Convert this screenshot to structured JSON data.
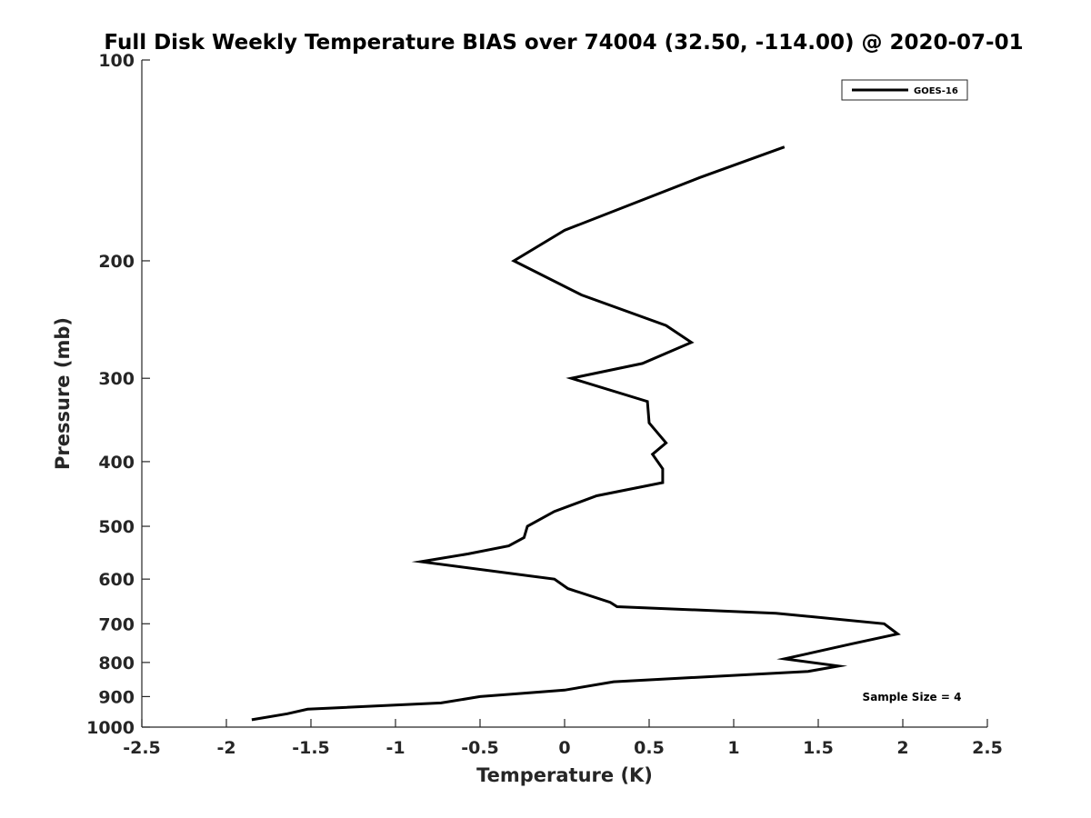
{
  "chart_data": {
    "type": "line",
    "title": "Full Disk Weekly Temperature BIAS over 74004 (32.50, -114.00) @ 2020-07-01",
    "xlabel": "Temperature (K)",
    "ylabel": "Pressure (mb)",
    "xlim": [
      -2.5,
      2.5
    ],
    "ylim": [
      1000,
      100
    ],
    "yscale": "log",
    "y_reversed": true,
    "x_ticks": [
      "-2.5",
      "-2",
      "-1.5",
      "-1",
      "-0.5",
      "0",
      "0.5",
      "1",
      "1.5",
      "2",
      "2.5"
    ],
    "y_ticks": [
      "100",
      "200",
      "300",
      "400",
      "500",
      "600",
      "700",
      "800",
      "900",
      "1000"
    ],
    "grid": false,
    "legend": {
      "position": "top-right",
      "entries": [
        "GOES-16"
      ]
    },
    "annotation": "Sample Size = 4",
    "series": [
      {
        "name": "GOES-16",
        "color": "#000000",
        "points": [
          [
            1.3,
            135
          ],
          [
            0.8,
            150
          ],
          [
            0.0,
            180
          ],
          [
            -0.3,
            200
          ],
          [
            0.1,
            225
          ],
          [
            0.6,
            250
          ],
          [
            0.75,
            265
          ],
          [
            0.46,
            285
          ],
          [
            0.04,
            300
          ],
          [
            0.49,
            325
          ],
          [
            0.5,
            350
          ],
          [
            0.6,
            375
          ],
          [
            0.52,
            390
          ],
          [
            0.58,
            410
          ],
          [
            0.58,
            430
          ],
          [
            0.19,
            450
          ],
          [
            -0.06,
            475
          ],
          [
            -0.22,
            500
          ],
          [
            -0.24,
            520
          ],
          [
            -0.33,
            535
          ],
          [
            -0.57,
            550
          ],
          [
            -0.85,
            565
          ],
          [
            -0.06,
            600
          ],
          [
            0.02,
            620
          ],
          [
            0.27,
            650
          ],
          [
            0.31,
            660
          ],
          [
            1.25,
            675
          ],
          [
            1.89,
            700
          ],
          [
            1.97,
            725
          ],
          [
            1.7,
            750
          ],
          [
            1.45,
            775
          ],
          [
            1.3,
            790
          ],
          [
            1.62,
            810
          ],
          [
            1.44,
            825
          ],
          [
            0.29,
            855
          ],
          [
            0.0,
            880
          ],
          [
            -0.5,
            900
          ],
          [
            -0.73,
            920
          ],
          [
            -1.52,
            940
          ],
          [
            -1.64,
            955
          ],
          [
            -1.85,
            975
          ]
        ]
      }
    ]
  }
}
